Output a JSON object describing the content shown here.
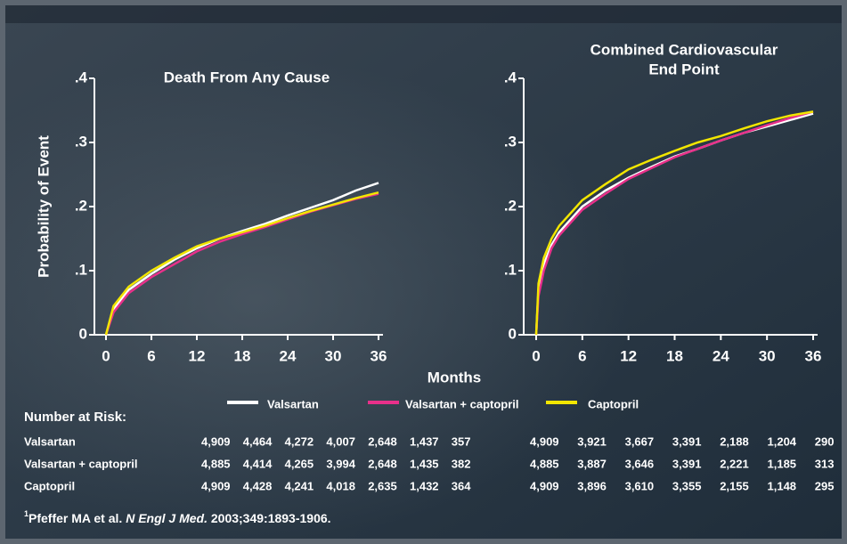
{
  "chart_data": [
    {
      "type": "line",
      "title": [
        "Death From Any Cause"
      ],
      "y_label": "Probability of Event",
      "x_label": "Months",
      "x": [
        0,
        1,
        3,
        6,
        9,
        12,
        15,
        18,
        21,
        24,
        27,
        30,
        33,
        36
      ],
      "xlim": [
        0,
        36
      ],
      "xticks": [
        0,
        6,
        12,
        18,
        24,
        30,
        36
      ],
      "ylim": [
        0,
        0.4
      ],
      "yticks": [
        0,
        {
          "value": 0.1,
          "label": ".1"
        },
        {
          "value": 0.2,
          "label": ".2"
        },
        {
          "value": 0.3,
          "label": ".3"
        },
        {
          "value": 0.4,
          "label": ".4"
        }
      ],
      "series": [
        {
          "name": "Valsartan",
          "color": "#ffffff",
          "values": [
            0,
            0.04,
            0.07,
            0.095,
            0.117,
            0.135,
            0.15,
            0.162,
            0.173,
            0.186,
            0.198,
            0.21,
            0.225,
            0.237
          ]
        },
        {
          "name": "Valsartan + captopril",
          "color": "#e8308a",
          "values": [
            0,
            0.035,
            0.065,
            0.09,
            0.11,
            0.13,
            0.145,
            0.157,
            0.168,
            0.18,
            0.192,
            0.202,
            0.212,
            0.22
          ]
        },
        {
          "name": "Captopril",
          "color": "#f2e600",
          "values": [
            0,
            0.045,
            0.075,
            0.1,
            0.12,
            0.138,
            0.15,
            0.16,
            0.17,
            0.182,
            0.193,
            0.203,
            0.213,
            0.222
          ]
        }
      ]
    },
    {
      "type": "line",
      "title": [
        "Combined Cardiovascular",
        "End Point"
      ],
      "x": [
        0,
        0.3,
        1,
        2,
        3,
        6,
        9,
        12,
        15,
        18,
        21,
        24,
        27,
        30,
        33,
        36
      ],
      "xlim": [
        0,
        36
      ],
      "xticks": [
        0,
        6,
        12,
        18,
        24,
        30,
        36
      ],
      "ylim": [
        0,
        0.4
      ],
      "yticks": [
        0,
        {
          "value": 0.1,
          "label": ".1"
        },
        {
          "value": 0.2,
          "label": ".2"
        },
        {
          "value": 0.3,
          "label": ".3"
        },
        {
          "value": 0.4,
          "label": ".4"
        }
      ],
      "series": [
        {
          "color": "#ffffff",
          "values": [
            0,
            0.07,
            0.11,
            0.14,
            0.16,
            0.2,
            0.225,
            0.245,
            0.262,
            0.278,
            0.29,
            0.303,
            0.315,
            0.325,
            0.335,
            0.345
          ]
        },
        {
          "color": "#e8308a",
          "values": [
            0,
            0.06,
            0.1,
            0.135,
            0.155,
            0.195,
            0.22,
            0.243,
            0.26,
            0.277,
            0.29,
            0.303,
            0.315,
            0.327,
            0.338,
            0.348
          ]
        },
        {
          "color": "#f2e600",
          "values": [
            0,
            0.08,
            0.12,
            0.15,
            0.17,
            0.21,
            0.235,
            0.258,
            0.273,
            0.287,
            0.3,
            0.31,
            0.322,
            0.333,
            0.342,
            0.348
          ]
        }
      ]
    }
  ],
  "risk_table": {
    "title": "Number at Risk:",
    "rows": [
      {
        "label": "Valsartan",
        "values": [
          "4,909",
          "4,464",
          "4,272",
          "4,007",
          "2,648",
          "1,437",
          "357",
          "4,909",
          "3,921",
          "3,667",
          "3,391",
          "2,188",
          "1,204",
          "290"
        ]
      },
      {
        "label": "Valsartan + captopril",
        "values": [
          "4,885",
          "4,414",
          "4,265",
          "3,994",
          "2,648",
          "1,435",
          "382",
          "4,885",
          "3,887",
          "3,646",
          "3,391",
          "2,221",
          "1,185",
          "313"
        ]
      },
      {
        "label": "Captopril",
        "values": [
          "4,909",
          "4,428",
          "4,241",
          "4,018",
          "2,635",
          "1,432",
          "364",
          "4,909",
          "3,896",
          "3,610",
          "3,355",
          "2,155",
          "1,148",
          "295"
        ]
      }
    ]
  },
  "footnote": {
    "marker": "1",
    "authors": "Pfeffer MA et al.",
    "journal": "N Engl J Med.",
    "details": "2003;349:1893-1906."
  }
}
